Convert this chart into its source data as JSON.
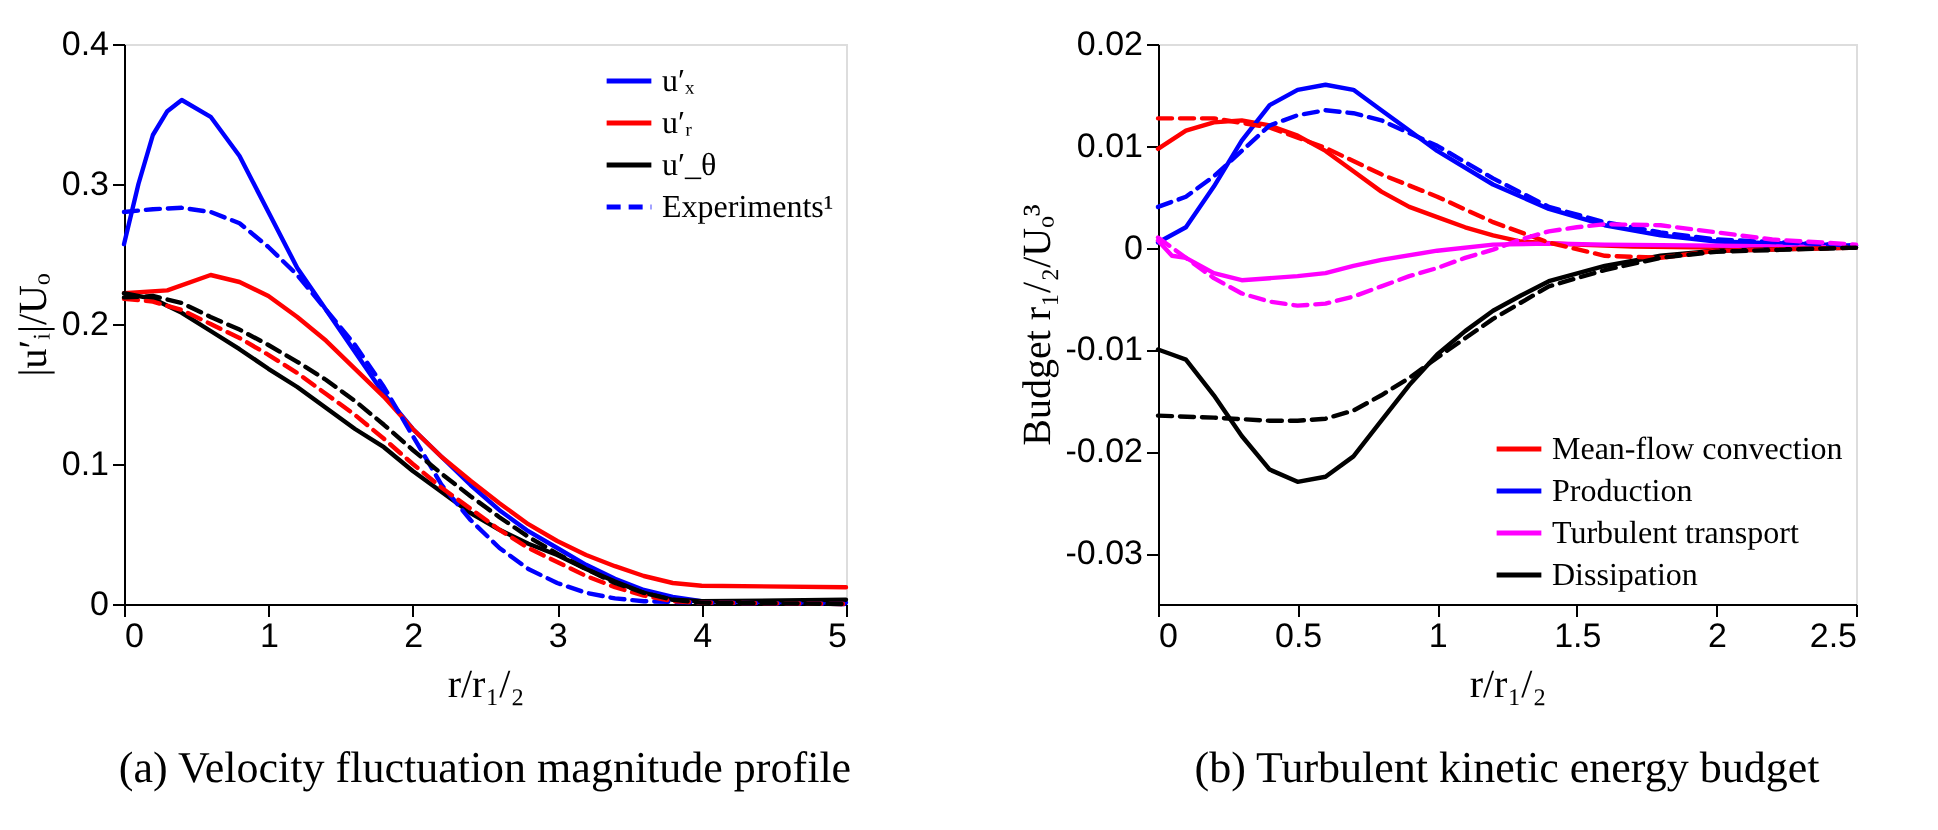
{
  "chart_data": [
    {
      "type": "line",
      "title": "(a) Velocity fluctuation magnitude profile",
      "xlabel": "r/r₁/₂",
      "ylabel": "|u′ᵢ|/Uₒ",
      "xlim": [
        0,
        5
      ],
      "ylim": [
        0,
        0.4
      ],
      "xticks": [
        0,
        1,
        2,
        3,
        4,
        5
      ],
      "yticks": [
        0,
        0.1,
        0.2,
        0.3,
        0.4
      ],
      "grid": false,
      "legend": "top right",
      "line_style": "solid",
      "series": [
        {
          "name": "u′ₓ",
          "color": "#0000ff",
          "x": [
            0,
            0.1,
            0.2,
            0.3,
            0.4,
            0.6,
            0.8,
            1.0,
            1.2,
            1.4,
            1.6,
            1.8,
            2.0,
            2.2,
            2.4,
            2.6,
            2.8,
            3.0,
            3.2,
            3.4,
            3.6,
            3.8,
            4.0,
            5
          ],
          "values": [
            0.257,
            0.3,
            0.335,
            0.352,
            0.36,
            0.348,
            0.32,
            0.28,
            0.24,
            0.21,
            0.18,
            0.15,
            0.125,
            0.105,
            0.085,
            0.067,
            0.052,
            0.04,
            0.028,
            0.018,
            0.01,
            0.005,
            0.002,
            0.001
          ]
        },
        {
          "name": "u′ᵣ",
          "color": "#ff0000",
          "x": [
            0,
            0.3,
            0.6,
            0.8,
            1.0,
            1.2,
            1.4,
            1.6,
            1.8,
            2.0,
            2.2,
            2.4,
            2.6,
            2.8,
            3.0,
            3.2,
            3.4,
            3.6,
            3.8,
            4.0,
            5
          ],
          "values": [
            0.222,
            0.224,
            0.235,
            0.23,
            0.22,
            0.205,
            0.188,
            0.168,
            0.148,
            0.125,
            0.105,
            0.088,
            0.072,
            0.057,
            0.045,
            0.035,
            0.027,
            0.02,
            0.015,
            0.013,
            0.012
          ]
        },
        {
          "name": "u′_θ",
          "color": "#000000",
          "x": [
            0,
            0.2,
            0.4,
            0.6,
            0.8,
            1.0,
            1.2,
            1.4,
            1.6,
            1.8,
            2.0,
            2.2,
            2.4,
            2.6,
            2.8,
            3.0,
            3.2,
            3.4,
            3.6,
            3.8,
            4.0,
            5
          ],
          "values": [
            0.222,
            0.218,
            0.208,
            0.195,
            0.182,
            0.168,
            0.155,
            0.14,
            0.125,
            0.112,
            0.095,
            0.08,
            0.065,
            0.053,
            0.043,
            0.035,
            0.025,
            0.016,
            0.008,
            0.003,
            0.002,
            0.003
          ]
        },
        {
          "name": "Experiments¹",
          "color": "#0000ff",
          "line_style": "dashed",
          "x": [
            0,
            0.2,
            0.4,
            0.6,
            0.8,
            1.0,
            1.2,
            1.4,
            1.6,
            1.8,
            2.0,
            2.2,
            2.4,
            2.6,
            2.8,
            3.0,
            3.2,
            3.4,
            3.6,
            4.0,
            5
          ],
          "values": [
            0.28,
            0.282,
            0.283,
            0.28,
            0.272,
            0.255,
            0.235,
            0.21,
            0.185,
            0.155,
            0.12,
            0.085,
            0.06,
            0.04,
            0.025,
            0.015,
            0.008,
            0.004,
            0.002,
            0.001,
            0
          ]
        },
        {
          "color": "#ff0000",
          "line_style": "dashed",
          "x": [
            0,
            0.2,
            0.4,
            0.6,
            0.8,
            1.0,
            1.2,
            1.4,
            1.6,
            1.8,
            2.0,
            2.2,
            2.4,
            2.6,
            2.8,
            3.0,
            3.2,
            3.4,
            3.6,
            3.8,
            4.0,
            5
          ],
          "values": [
            0.218,
            0.216,
            0.21,
            0.2,
            0.19,
            0.178,
            0.165,
            0.15,
            0.135,
            0.118,
            0.1,
            0.083,
            0.068,
            0.053,
            0.04,
            0.03,
            0.02,
            0.012,
            0.006,
            0.002,
            0.001,
            0
          ]
        },
        {
          "color": "#000000",
          "line_style": "dashed",
          "x": [
            0,
            0.2,
            0.4,
            0.6,
            0.8,
            1.0,
            1.2,
            1.4,
            1.6,
            1.8,
            2.0,
            2.2,
            2.4,
            2.6,
            2.8,
            3.0,
            3.2,
            3.4,
            3.6,
            3.8,
            4.0,
            5
          ],
          "values": [
            0.219,
            0.22,
            0.215,
            0.205,
            0.196,
            0.185,
            0.173,
            0.16,
            0.145,
            0.128,
            0.11,
            0.093,
            0.077,
            0.062,
            0.048,
            0.036,
            0.025,
            0.015,
            0.008,
            0.003,
            0.001,
            0
          ]
        }
      ]
    },
    {
      "type": "line",
      "title": "(b) Turbulent kinetic energy budget",
      "xlabel": "r/r₁/₂",
      "ylabel": "Budget r₁/₂/Uₒ³",
      "xlim": [
        0,
        2.5
      ],
      "ylim": [
        -0.035,
        0.02
      ],
      "xticks": [
        0,
        0.5,
        1,
        1.5,
        2,
        2.5
      ],
      "yticks": [
        -0.03,
        -0.02,
        -0.01,
        0,
        0.01,
        0.02
      ],
      "grid": false,
      "legend": "bottom right",
      "line_style": "solid",
      "series": [
        {
          "name": "Mean-flow convection",
          "color": "#ff0000",
          "x": [
            0,
            0.1,
            0.2,
            0.3,
            0.4,
            0.5,
            0.6,
            0.7,
            0.8,
            0.9,
            1.0,
            1.1,
            1.2,
            1.3,
            1.5,
            1.7,
            2,
            2.5
          ],
          "values": [
            0.0097,
            0.0115,
            0.0123,
            0.0125,
            0.012,
            0.011,
            0.0095,
            0.0075,
            0.0055,
            0.004,
            0.003,
            0.002,
            0.0012,
            0.0006,
            0.0003,
            0.0001,
            0,
            0
          ]
        },
        {
          "name": "Production",
          "color": "#0000ff",
          "x": [
            0,
            0.1,
            0.2,
            0.3,
            0.4,
            0.5,
            0.6,
            0.7,
            0.8,
            0.9,
            1.0,
            1.2,
            1.4,
            1.6,
            1.8,
            2.0,
            2.5
          ],
          "values": [
            0.0005,
            0.002,
            0.006,
            0.0105,
            0.014,
            0.0155,
            0.016,
            0.0155,
            0.0135,
            0.0115,
            0.0095,
            0.0062,
            0.0038,
            0.0022,
            0.0012,
            0.0006,
            0.0002
          ]
        },
        {
          "name": "Turbulent transport",
          "color": "#ff00ff",
          "x": [
            0,
            0.05,
            0.1,
            0.2,
            0.3,
            0.4,
            0.5,
            0.6,
            0.7,
            0.8,
            1.0,
            1.2,
            1.4,
            1.6,
            2,
            2.5
          ],
          "values": [
            0.0007,
            -0.0008,
            -0.001,
            -0.0025,
            -0.0032,
            -0.003,
            -0.0028,
            -0.0025,
            -0.0018,
            -0.0012,
            -0.0003,
            0.0003,
            0.0004,
            0.0003,
            0.0002,
            0
          ]
        },
        {
          "name": "Dissipation",
          "color": "#000000",
          "x": [
            0,
            0.05,
            0.1,
            0.2,
            0.3,
            0.4,
            0.5,
            0.6,
            0.7,
            0.8,
            0.9,
            1.0,
            1.1,
            1.2,
            1.3,
            1.4,
            1.6,
            1.8,
            2.0,
            2.5
          ],
          "values": [
            -0.01,
            -0.0105,
            -0.011,
            -0.0145,
            -0.0185,
            -0.0218,
            -0.023,
            -0.0225,
            -0.0205,
            -0.017,
            -0.0135,
            -0.0105,
            -0.0082,
            -0.0062,
            -0.0047,
            -0.0033,
            -0.0018,
            -0.0008,
            -0.0003,
            0
          ]
        },
        {
          "color": "#ff0000",
          "line_style": "dashed",
          "x": [
            0,
            0.2,
            0.4,
            0.6,
            0.8,
            1.0,
            1.2,
            1.4,
            1.6,
            1.8,
            2,
            2.5
          ],
          "values": [
            0.0127,
            0.0127,
            0.0118,
            0.0098,
            0.0072,
            0.005,
            0.0025,
            0.0005,
            -0.0008,
            -0.001,
            -0.0003,
            0
          ]
        },
        {
          "color": "#0000ff",
          "line_style": "dashed",
          "x": [
            0,
            0.1,
            0.2,
            0.3,
            0.4,
            0.5,
            0.6,
            0.7,
            0.8,
            1.0,
            1.2,
            1.4,
            1.6,
            1.8,
            2,
            2.5
          ],
          "values": [
            0.004,
            0.005,
            0.007,
            0.0095,
            0.012,
            0.013,
            0.0135,
            0.0132,
            0.0125,
            0.01,
            0.0068,
            0.004,
            0.0025,
            0.0015,
            0.0008,
            0.0002
          ]
        },
        {
          "color": "#ff00ff",
          "line_style": "dashed",
          "x": [
            0,
            0.1,
            0.2,
            0.3,
            0.4,
            0.5,
            0.6,
            0.7,
            0.8,
            0.9,
            1.0,
            1.1,
            1.2,
            1.3,
            1.4,
            1.5,
            1.6,
            1.8,
            2.0,
            2.2,
            2.5
          ],
          "values": [
            0.001,
            -0.001,
            -0.003,
            -0.0045,
            -0.0053,
            -0.0057,
            -0.0055,
            -0.0048,
            -0.0038,
            -0.0028,
            -0.002,
            -0.001,
            -0.0002,
            0.0008,
            0.0016,
            0.002,
            0.0023,
            0.0022,
            0.0015,
            0.0008,
            0.0003
          ]
        },
        {
          "color": "#000000",
          "line_style": "dashed",
          "x": [
            0,
            0.2,
            0.4,
            0.5,
            0.6,
            0.7,
            0.8,
            0.9,
            1.0,
            1.2,
            1.4,
            1.6,
            1.8,
            2.0,
            2.5
          ],
          "values": [
            -0.0165,
            -0.0167,
            -0.017,
            -0.017,
            -0.0168,
            -0.016,
            -0.0145,
            -0.0128,
            -0.0108,
            -0.007,
            -0.0038,
            -0.0022,
            -0.001,
            -0.0004,
            0
          ]
        }
      ]
    }
  ]
}
